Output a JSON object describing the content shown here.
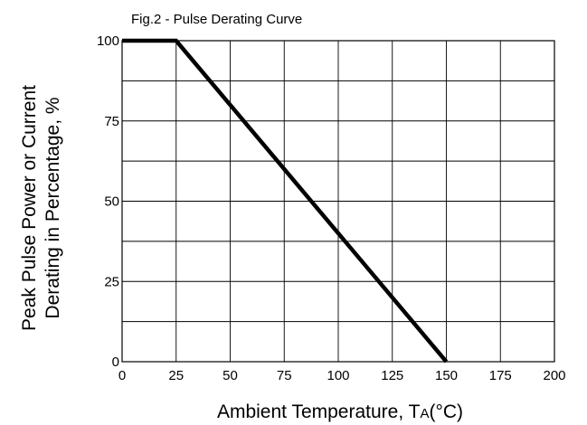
{
  "chart_data": {
    "type": "line",
    "title": "Fig.2 -  Pulse Derating Curve",
    "xlabel": "Ambient Temperature, T",
    "xlabel_sub": "A",
    "xlabel_unit": "(°C)",
    "ylabel_lines": [
      "Peak Pulse Power or Current",
      "Derating in Percentage, %"
    ],
    "xlim": [
      0,
      200
    ],
    "ylim": [
      0,
      100
    ],
    "x_ticks": [
      0,
      25,
      50,
      75,
      100,
      125,
      150,
      175,
      200
    ],
    "y_ticks": [
      0,
      25,
      50,
      75,
      100
    ],
    "x_tick_labels": [
      "0",
      "25",
      "50",
      "75",
      "100",
      "125",
      "150",
      "175",
      "200"
    ],
    "y_tick_labels": [
      "0",
      "25",
      "50",
      "75",
      "100"
    ],
    "grid": true,
    "series": [
      {
        "x": [
          0,
          25,
          150
        ],
        "y": [
          100,
          100,
          0
        ],
        "color": "#000000"
      }
    ]
  }
}
